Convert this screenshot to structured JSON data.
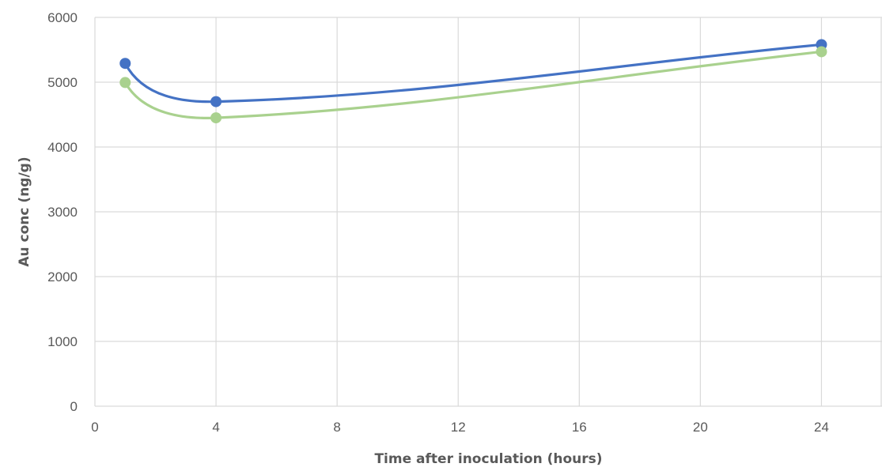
{
  "chart_data": {
    "type": "scatter",
    "title": "",
    "xlabel": "Time after inoculation (hours)",
    "ylabel": "Au conc (ng/g)",
    "xlim": [
      0,
      26
    ],
    "ylim": [
      0,
      6000
    ],
    "x_ticks": [
      0,
      4,
      8,
      12,
      16,
      20,
      24
    ],
    "y_ticks": [
      0,
      1000,
      2000,
      3000,
      4000,
      5000,
      6000
    ],
    "grid": true,
    "legend": "none",
    "smooth_lines": true,
    "series": [
      {
        "color": "#4472C4",
        "x": [
          1,
          4,
          24
        ],
        "y": [
          5290,
          4700,
          5580
        ]
      },
      {
        "color": "#A9D18E",
        "x": [
          1,
          4,
          24
        ],
        "y": [
          4995,
          4450,
          5470
        ]
      }
    ]
  }
}
